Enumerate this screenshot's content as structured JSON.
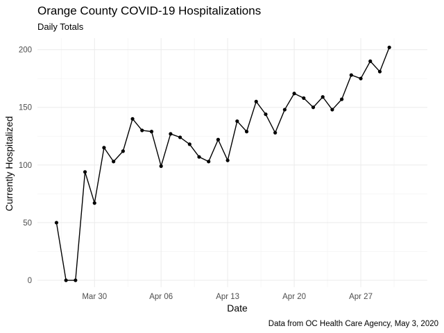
{
  "chart_data": {
    "type": "line",
    "title": "Orange County COVID-19 Hospitalizations",
    "subtitle": "Daily Totals",
    "xlabel": "Date",
    "ylabel": "Currently Hospitalized",
    "caption": "Data from OC Health Care Agency, May 3, 2020",
    "x_ticks": [
      {
        "date": "2020-03-30",
        "label": "Mar 30"
      },
      {
        "date": "2020-04-06",
        "label": "Apr 06"
      },
      {
        "date": "2020-04-13",
        "label": "Apr 13"
      },
      {
        "date": "2020-04-20",
        "label": "Apr 20"
      },
      {
        "date": "2020-04-27",
        "label": "Apr 27"
      }
    ],
    "y_ticks": [
      0,
      50,
      100,
      150,
      200
    ],
    "xlim": [
      "2020-03-24",
      "2020-05-04"
    ],
    "ylim": [
      -6,
      210
    ],
    "grid": true,
    "series": [
      {
        "points": [
          {
            "x": "2020-03-26",
            "y": 50
          },
          {
            "x": "2020-03-27",
            "y": 0
          },
          {
            "x": "2020-03-28",
            "y": 0
          },
          {
            "x": "2020-03-29",
            "y": 94
          },
          {
            "x": "2020-03-30",
            "y": 67
          },
          {
            "x": "2020-03-31",
            "y": 115
          },
          {
            "x": "2020-04-01",
            "y": 103
          },
          {
            "x": "2020-04-02",
            "y": 112
          },
          {
            "x": "2020-04-03",
            "y": 140
          },
          {
            "x": "2020-04-04",
            "y": 130
          },
          {
            "x": "2020-04-05",
            "y": 129
          },
          {
            "x": "2020-04-06",
            "y": 99
          },
          {
            "x": "2020-04-07",
            "y": 127
          },
          {
            "x": "2020-04-08",
            "y": 124
          },
          {
            "x": "2020-04-09",
            "y": 118
          },
          {
            "x": "2020-04-10",
            "y": 107
          },
          {
            "x": "2020-04-11",
            "y": 103
          },
          {
            "x": "2020-04-12",
            "y": 122
          },
          {
            "x": "2020-04-13",
            "y": 104
          },
          {
            "x": "2020-04-14",
            "y": 138
          },
          {
            "x": "2020-04-15",
            "y": 129
          },
          {
            "x": "2020-04-16",
            "y": 155
          },
          {
            "x": "2020-04-17",
            "y": 144
          },
          {
            "x": "2020-04-18",
            "y": 128
          },
          {
            "x": "2020-04-19",
            "y": 148
          },
          {
            "x": "2020-04-20",
            "y": 162
          },
          {
            "x": "2020-04-21",
            "y": 158
          },
          {
            "x": "2020-04-22",
            "y": 150
          },
          {
            "x": "2020-04-23",
            "y": 159
          },
          {
            "x": "2020-04-24",
            "y": 148
          },
          {
            "x": "2020-04-25",
            "y": 157
          },
          {
            "x": "2020-04-26",
            "y": 178
          },
          {
            "x": "2020-04-27",
            "y": 175
          },
          {
            "x": "2020-04-28",
            "y": 190
          },
          {
            "x": "2020-04-29",
            "y": 181
          },
          {
            "x": "2020-04-30",
            "y": 202
          }
        ]
      }
    ]
  }
}
